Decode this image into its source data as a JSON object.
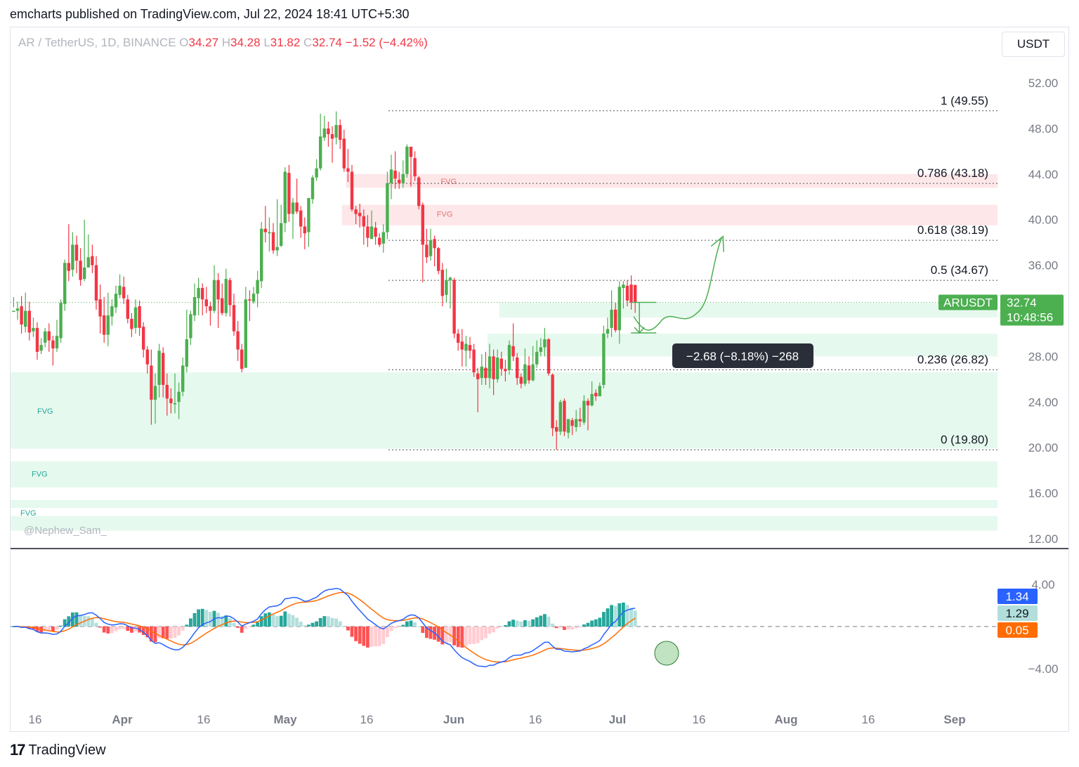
{
  "header": {
    "text": "emcharts published on TradingView.com, Jul 22, 2024 18:41 UTC+5:30"
  },
  "footer": {
    "brand": "TradingView",
    "mark": "17"
  },
  "toolbar": {
    "unit": "USDT"
  },
  "legend": {
    "symbol": "AR / TetherUS, 1D, BINANCE",
    "o_label": "O",
    "o_value": "34.27",
    "h_label": "H",
    "h_value": "34.28",
    "l_label": "L",
    "l_value": "31.82",
    "c_label": "C",
    "c_value": "32.74",
    "change": "−1.52 (−4.42%)"
  },
  "watermark": "@Nephew_Sam_",
  "colors": {
    "up": "#4caf50",
    "down": "#f23645",
    "fvg_green": "#e6f9ee",
    "fvg_red": "#fde7e9",
    "macd": "#2962ff",
    "signal": "#ff6d00",
    "hist_up_strong": "#26a69a",
    "hist_up_weak": "#b2dfdb",
    "hist_down_strong": "#ff5252",
    "hist_down_weak": "#ffcdd2"
  },
  "chart_data": [
    {
      "type": "candlestick",
      "symbol": "ARUSDT",
      "price_axis_ticks": [
        "52.00",
        "48.00",
        "44.00",
        "40.00",
        "36.00",
        "32.00",
        "28.00",
        "24.00",
        "20.00",
        "16.00",
        "12.00"
      ],
      "time_axis_ticks": [
        "16",
        "Apr",
        "16",
        "May",
        "16",
        "Jun",
        "16",
        "Jul",
        "16",
        "Aug",
        "16",
        "Sep"
      ],
      "ylim": [
        12,
        52
      ],
      "last_price": {
        "label": "ARUSDT",
        "value": "32.74",
        "countdown": "10:48:56"
      },
      "fib_levels": [
        {
          "label": "1 (49.55)",
          "value": 49.55
        },
        {
          "label": "0.786 (43.18)",
          "value": 43.18
        },
        {
          "label": "0.618 (38.19)",
          "value": 38.19
        },
        {
          "label": "0.5 (34.67)",
          "value": 34.67
        },
        {
          "label": "0.236 (26.82)",
          "value": 26.82
        },
        {
          "label": "0 (19.80)",
          "value": 19.8
        }
      ],
      "fvg_zones": [
        {
          "label": "FVG",
          "color": "red",
          "from": 42.8,
          "to": 44.0,
          "start_index": 85
        },
        {
          "label": "FVG",
          "color": "red",
          "from": 39.5,
          "to": 41.3,
          "start_index": 84
        },
        {
          "label": "",
          "color": "green",
          "from": 31.4,
          "to": 32.7,
          "start_index": 124
        },
        {
          "label": "",
          "color": "green",
          "from": 28.0,
          "to": 30.0,
          "start_index": 121
        },
        {
          "label": "",
          "color": "green",
          "from": 25.3,
          "to": 26.5,
          "start_index": 120
        },
        {
          "label": "FVG",
          "color": "green",
          "from": 19.9,
          "to": 26.6,
          "start_index": 0
        },
        {
          "label": "FVG",
          "color": "green",
          "from": 16.5,
          "to": 18.8,
          "start_index": 0
        },
        {
          "label": "FVG",
          "color": "green",
          "from": 14.7,
          "to": 15.4,
          "start_index": 0
        },
        {
          "label": "",
          "color": "green",
          "from": 12.7,
          "to": 14.0,
          "start_index": 0
        }
      ],
      "measure": {
        "label": "−2.68 (−8.18%) −268",
        "from": 32.74,
        "to": 30.06
      },
      "candles": [
        [
          31.9,
          32.0,
          33.2,
          32.3
        ],
        [
          32.0,
          32.2,
          32.8,
          31.2
        ],
        [
          32.4,
          30.8,
          33.3,
          30.0
        ],
        [
          30.6,
          32.0,
          33.6,
          30.1
        ],
        [
          32.0,
          30.1,
          32.8,
          29.4
        ],
        [
          30.2,
          30.5,
          31.4,
          29.7
        ],
        [
          30.5,
          28.4,
          31.0,
          27.7
        ],
        [
          28.5,
          29.0,
          29.6,
          28.2
        ],
        [
          29.2,
          30.2,
          30.5,
          28.8
        ],
        [
          30.2,
          29.4,
          30.9,
          28.4
        ],
        [
          29.4,
          28.7,
          29.8,
          27.2
        ],
        [
          28.7,
          29.8,
          31.2,
          28.4
        ],
        [
          29.6,
          32.7,
          33.0,
          29.2
        ],
        [
          32.6,
          36.2,
          36.5,
          32.0
        ],
        [
          36.2,
          35.5,
          39.6,
          34.6
        ],
        [
          35.6,
          37.8,
          38.9,
          35.0
        ],
        [
          37.8,
          36.4,
          38.6,
          35.3
        ],
        [
          36.4,
          34.7,
          37.5,
          34.2
        ],
        [
          34.8,
          35.8,
          40.0,
          34.6
        ],
        [
          35.8,
          36.7,
          38.7,
          36.0
        ],
        [
          36.8,
          36.0,
          37.8,
          35.3
        ],
        [
          36.0,
          32.9,
          36.8,
          32.1
        ],
        [
          33.0,
          31.5,
          34.3,
          30.0
        ],
        [
          31.6,
          29.9,
          33.2,
          29.2
        ],
        [
          29.9,
          31.6,
          33.6,
          28.9
        ],
        [
          31.5,
          32.4,
          33.0,
          30.7
        ],
        [
          32.3,
          33.5,
          34.2,
          31.8
        ],
        [
          33.4,
          34.2,
          35.2,
          33.1
        ],
        [
          34.1,
          33.1,
          35.0,
          32.6
        ],
        [
          33.0,
          31.3,
          33.4,
          30.9
        ],
        [
          31.3,
          30.4,
          31.8,
          29.7
        ],
        [
          30.5,
          32.3,
          33.0,
          30.0
        ],
        [
          32.4,
          30.5,
          32.9,
          29.8
        ],
        [
          30.6,
          28.6,
          31.0,
          27.9
        ],
        [
          28.6,
          27.3,
          28.9,
          26.5
        ],
        [
          27.2,
          24.2,
          28.6,
          22.0
        ],
        [
          24.2,
          25.4,
          26.5,
          22.1
        ],
        [
          25.5,
          28.5,
          29.1,
          24.4
        ],
        [
          28.3,
          25.5,
          28.8,
          24.4
        ],
        [
          25.5,
          24.3,
          26.5,
          22.8
        ],
        [
          24.3,
          23.9,
          25.2,
          23.0
        ],
        [
          23.8,
          23.9,
          26.5,
          23.0
        ],
        [
          24.0,
          24.9,
          25.7,
          22.5
        ],
        [
          24.9,
          27.2,
          27.9,
          24.5
        ],
        [
          27.1,
          29.5,
          32.1,
          26.6
        ],
        [
          29.6,
          31.7,
          32.0,
          29.0
        ],
        [
          31.6,
          33.2,
          34.4,
          31.1
        ],
        [
          33.1,
          34.0,
          34.9,
          31.6
        ],
        [
          34.0,
          33.0,
          34.4,
          31.6
        ],
        [
          33.0,
          32.4,
          34.1,
          31.8
        ],
        [
          32.4,
          32.0,
          32.8,
          30.7
        ],
        [
          32.0,
          34.7,
          36.0,
          31.8
        ],
        [
          34.7,
          33.0,
          35.3,
          30.5
        ],
        [
          33.1,
          31.8,
          34.4,
          31.6
        ],
        [
          31.8,
          34.8,
          35.7,
          31.5
        ],
        [
          34.7,
          32.5,
          34.9,
          31.5
        ],
        [
          32.5,
          30.2,
          33.5,
          29.8
        ],
        [
          30.2,
          28.6,
          31.1,
          27.6
        ],
        [
          28.6,
          26.9,
          29.1,
          26.6
        ],
        [
          27.0,
          33.0,
          34.1,
          27.0
        ],
        [
          33.0,
          32.9,
          33.8,
          31.1
        ],
        [
          32.8,
          33.5,
          34.1,
          32.6
        ],
        [
          33.5,
          34.7,
          35.5,
          32.3
        ],
        [
          34.6,
          39.2,
          39.8,
          34.0
        ],
        [
          39.2,
          38.9,
          41.2,
          38.0
        ],
        [
          38.8,
          38.9,
          40.2,
          37.2
        ],
        [
          38.9,
          37.3,
          39.7,
          37.0
        ],
        [
          37.3,
          37.6,
          41.8,
          36.8
        ],
        [
          37.7,
          39.7,
          41.3,
          37.6
        ],
        [
          39.7,
          44.2,
          44.6,
          38.9
        ],
        [
          44.1,
          40.5,
          44.8,
          39.8
        ],
        [
          40.5,
          41.5,
          41.9,
          38.3
        ],
        [
          41.5,
          40.7,
          43.6,
          40.5
        ],
        [
          40.8,
          39.4,
          41.2,
          38.4
        ],
        [
          39.4,
          38.8,
          40.2,
          37.4
        ],
        [
          38.9,
          41.9,
          41.9,
          37.6
        ],
        [
          41.8,
          43.7,
          43.9,
          41.4
        ],
        [
          43.7,
          44.5,
          45.3,
          43.4
        ],
        [
          44.5,
          47.3,
          49.3,
          44.3
        ],
        [
          47.2,
          48.0,
          49.1,
          46.9
        ],
        [
          48.0,
          47.5,
          48.6,
          46.4
        ],
        [
          47.5,
          47.1,
          48.2,
          45.0
        ],
        [
          47.2,
          48.3,
          49.5,
          46.6
        ],
        [
          48.3,
          47.0,
          48.8,
          46.2
        ],
        [
          47.1,
          44.5,
          47.9,
          44.2
        ],
        [
          44.5,
          44.2,
          46.2,
          43.3
        ],
        [
          44.2,
          40.9,
          44.8,
          40.7
        ],
        [
          40.9,
          40.5,
          41.2,
          39.6
        ],
        [
          40.6,
          40.3,
          41.4,
          39.3
        ],
        [
          40.3,
          39.4,
          40.9,
          37.8
        ],
        [
          39.4,
          38.4,
          40.4,
          37.6
        ],
        [
          38.3,
          39.4,
          40.8,
          38.4
        ],
        [
          39.3,
          38.5,
          39.8,
          37.8
        ],
        [
          38.4,
          37.8,
          38.8,
          37.6
        ],
        [
          37.9,
          38.9,
          39.6,
          37.1
        ],
        [
          38.9,
          43.2,
          44.2,
          38.3
        ],
        [
          43.2,
          44.4,
          45.7,
          41.8
        ],
        [
          44.3,
          43.6,
          46.0,
          42.7
        ],
        [
          43.5,
          43.2,
          44.2,
          42.7
        ],
        [
          43.2,
          44.0,
          45.2,
          42.8
        ],
        [
          44.0,
          46.4,
          46.6,
          43.7
        ],
        [
          46.4,
          45.5,
          46.4,
          42.9
        ],
        [
          45.4,
          43.8,
          46.0,
          43.4
        ],
        [
          43.7,
          41.2,
          43.8,
          40.9
        ],
        [
          41.3,
          37.8,
          41.5,
          34.5
        ],
        [
          37.8,
          36.7,
          39.2,
          36.2
        ],
        [
          36.8,
          38.2,
          39.2,
          36.4
        ],
        [
          38.3,
          37.5,
          38.6,
          35.9
        ],
        [
          37.5,
          35.5,
          37.6,
          35.2
        ],
        [
          35.6,
          33.3,
          36.2,
          32.4
        ],
        [
          33.4,
          34.7,
          35.7,
          32.7
        ],
        [
          34.7,
          34.9,
          35.0,
          32.2
        ],
        [
          34.7,
          30.0,
          34.9,
          29.6
        ],
        [
          30.0,
          29.2,
          30.4,
          28.5
        ],
        [
          29.3,
          28.6,
          30.4,
          27.1
        ],
        [
          28.5,
          29.1,
          29.8,
          27.1
        ],
        [
          29.0,
          28.5,
          29.7,
          27.8
        ],
        [
          28.6,
          26.6,
          29.1,
          26.2
        ],
        [
          26.5,
          26.0,
          27.0,
          23.1
        ],
        [
          26.1,
          27.1,
          28.2,
          25.5
        ],
        [
          27.0,
          26.1,
          28.4,
          25.5
        ],
        [
          26.1,
          28.0,
          29.1,
          25.2
        ],
        [
          28.0,
          26.0,
          28.6,
          24.6
        ],
        [
          26.0,
          27.9,
          28.6,
          25.7
        ],
        [
          27.8,
          26.9,
          28.4,
          26.3
        ],
        [
          26.9,
          26.7,
          27.7,
          25.8
        ],
        [
          26.8,
          29.0,
          29.4,
          26.4
        ],
        [
          28.9,
          28.0,
          30.9,
          27.6
        ],
        [
          27.9,
          26.1,
          28.3,
          25.5
        ],
        [
          26.2,
          25.6,
          26.5,
          25.2
        ],
        [
          25.6,
          27.3,
          28.7,
          25.4
        ],
        [
          27.2,
          25.9,
          28.0,
          25.6
        ],
        [
          25.9,
          27.3,
          28.9,
          25.8
        ],
        [
          27.3,
          28.4,
          29.4,
          27.0
        ],
        [
          28.4,
          28.8,
          29.6,
          28.0
        ],
        [
          28.8,
          29.5,
          30.5,
          28.0
        ],
        [
          29.5,
          26.5,
          29.6,
          26.3
        ],
        [
          26.4,
          21.7,
          26.5,
          21.0
        ],
        [
          21.8,
          21.4,
          22.4,
          19.8
        ],
        [
          21.4,
          24.0,
          24.2,
          21.1
        ],
        [
          24.1,
          21.4,
          24.3,
          21.0
        ],
        [
          21.3,
          22.5,
          22.5,
          20.8
        ],
        [
          22.4,
          21.9,
          22.6,
          21.1
        ],
        [
          21.8,
          22.5,
          23.3,
          21.4
        ],
        [
          22.5,
          22.3,
          23.5,
          21.8
        ],
        [
          22.2,
          24.1,
          24.6,
          22.0
        ],
        [
          24.1,
          23.7,
          24.3,
          21.5
        ],
        [
          23.7,
          24.7,
          25.8,
          23.6
        ],
        [
          24.8,
          24.5,
          25.1,
          24.1
        ],
        [
          24.5,
          25.4,
          25.7,
          24.6
        ],
        [
          25.5,
          30.0,
          30.7,
          25.2
        ],
        [
          30.0,
          30.4,
          31.4,
          29.6
        ],
        [
          30.5,
          32.1,
          33.8,
          29.7
        ],
        [
          32.1,
          30.3,
          32.7,
          30.1
        ],
        [
          30.3,
          34.1,
          34.6,
          29.1
        ],
        [
          34.0,
          34.3,
          34.6,
          32.2
        ],
        [
          34.2,
          32.9,
          34.7,
          32.4
        ],
        [
          34.3,
          32.7,
          35.1,
          32.1
        ],
        [
          34.27,
          32.74,
          34.28,
          31.82
        ]
      ],
      "projection_target": 38.4
    },
    {
      "type": "macd",
      "price_axis_ticks": [
        "4.00",
        "−4.00"
      ],
      "ylim": [
        -5,
        5
      ],
      "labels": {
        "macd": "1.34",
        "histogram": "1.29",
        "signal": "0.05"
      },
      "highlight": "bullish-cross"
    }
  ]
}
